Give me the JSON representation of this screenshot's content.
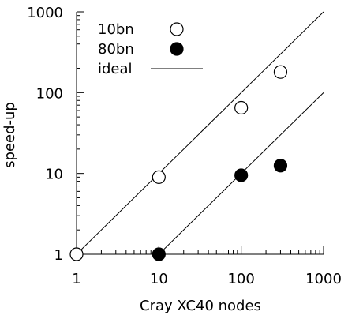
{
  "chart_data": {
    "type": "scatter",
    "xscale": "log",
    "yscale": "log",
    "xlim": [
      1,
      1000
    ],
    "ylim": [
      1,
      1000
    ],
    "xlabel": "Cray XC40 nodes",
    "ylabel": "speed-up",
    "x_tick_labels": [
      "1",
      "10",
      "100",
      "1000"
    ],
    "y_tick_labels": [
      "1",
      "10",
      "100",
      "1000"
    ],
    "grid": false,
    "legend_position": "top-left",
    "series": [
      {
        "name": "10bn",
        "marker": "open-circle",
        "color": "#000000",
        "points": [
          [
            1,
            1
          ],
          [
            10,
            9
          ],
          [
            100,
            65
          ],
          [
            300,
            180
          ]
        ]
      },
      {
        "name": "80bn",
        "marker": "filled-circle",
        "color": "#000000",
        "points": [
          [
            10,
            1
          ],
          [
            100,
            9.5
          ],
          [
            300,
            12.5
          ]
        ]
      }
    ],
    "ideal": {
      "name": "ideal",
      "lines": [
        {
          "start": [
            1,
            1
          ],
          "end": [
            1000,
            1000
          ]
        },
        {
          "start": [
            10,
            1
          ],
          "end": [
            1000,
            100
          ]
        }
      ]
    }
  }
}
